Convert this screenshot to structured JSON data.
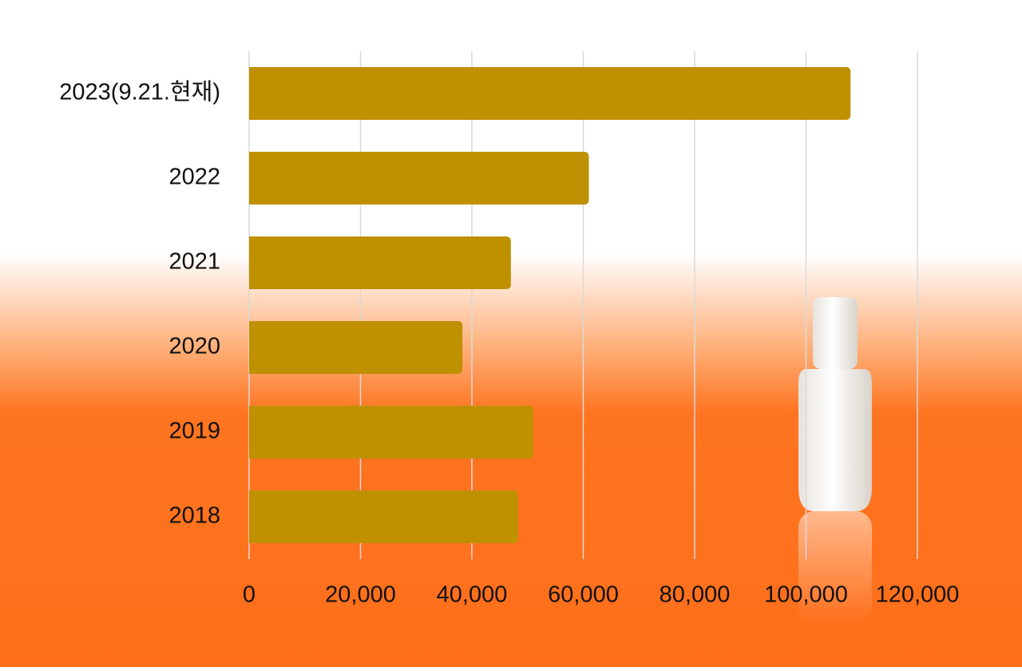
{
  "chart_data": {
    "type": "hbar",
    "categories": [
      "2023(9.21.현재)",
      "2022",
      "2021",
      "2020",
      "2019",
      "2018"
    ],
    "values": [
      108000,
      61000,
      47000,
      38300,
      51000,
      48300
    ],
    "color": "#bf9000",
    "xlim": [
      0,
      120000
    ],
    "xticks": [
      0,
      {
        "value": 20000,
        "label": "20,000"
      },
      {
        "value": 40000,
        "label": "40,000"
      },
      {
        "value": 60000,
        "label": "60,000"
      },
      {
        "value": 80000,
        "label": "80,000"
      },
      {
        "value": 100000,
        "label": "100,000"
      },
      {
        "value": 120000,
        "label": "120,000"
      }
    ],
    "grid": true
  }
}
